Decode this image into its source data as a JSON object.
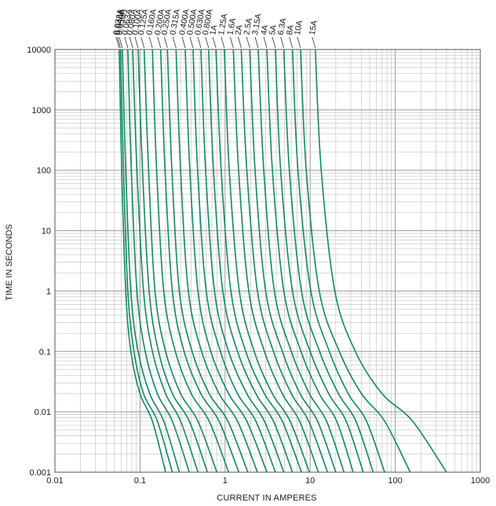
{
  "chart_data": {
    "type": "line",
    "title": "",
    "xlabel": "CURRENT IN AMPERES",
    "ylabel": "TIME IN SECONDS",
    "x_scale": "log",
    "y_scale": "log",
    "xlim": [
      0.01,
      1000
    ],
    "ylim": [
      0.001,
      10000
    ],
    "grid": true,
    "line_color": "#0f8a5f",
    "x_ticks": [
      "0.01",
      "0.1",
      "1",
      "10",
      "100",
      "1000"
    ],
    "y_ticks": [
      "0.001",
      "0.01",
      "0.1",
      "1",
      "10",
      "100",
      "1000",
      "10000"
    ],
    "series": [
      {
        "name": "0.032A",
        "x": [
          0.057,
          0.061,
          0.068,
          0.078,
          0.1,
          0.14,
          0.2
        ],
        "y": [
          10000,
          100,
          1,
          0.1,
          0.02,
          0.007,
          0.001
        ]
      },
      {
        "name": "0.040A",
        "x": [
          0.059,
          0.064,
          0.072,
          0.085,
          0.11,
          0.16,
          0.24
        ],
        "y": [
          10000,
          100,
          1,
          0.1,
          0.02,
          0.007,
          0.001
        ]
      },
      {
        "name": "0.050A",
        "x": [
          0.062,
          0.068,
          0.078,
          0.095,
          0.13,
          0.19,
          0.29
        ],
        "y": [
          10000,
          100,
          1,
          0.1,
          0.02,
          0.007,
          0.001
        ]
      },
      {
        "name": "0.063A",
        "x": [
          0.072,
          0.079,
          0.092,
          0.115,
          0.16,
          0.24,
          0.38
        ],
        "y": [
          10000,
          100,
          1,
          0.1,
          0.02,
          0.007,
          0.001
        ]
      },
      {
        "name": "0.080A",
        "x": [
          0.082,
          0.092,
          0.11,
          0.14,
          0.2,
          0.3,
          0.48
        ],
        "y": [
          10000,
          100,
          1,
          0.1,
          0.02,
          0.007,
          0.001
        ]
      },
      {
        "name": "0.100A",
        "x": [
          0.095,
          0.107,
          0.128,
          0.165,
          0.24,
          0.38,
          0.62
        ],
        "y": [
          10000,
          100,
          1,
          0.1,
          0.02,
          0.007,
          0.001
        ]
      },
      {
        "name": "0.125A",
        "x": [
          0.112,
          0.126,
          0.15,
          0.2,
          0.3,
          0.48,
          0.8
        ],
        "y": [
          10000,
          100,
          1,
          0.1,
          0.02,
          0.007,
          0.001
        ]
      },
      {
        "name": "0.160A",
        "x": [
          0.14,
          0.157,
          0.19,
          0.26,
          0.4,
          0.65,
          1.1
        ],
        "y": [
          10000,
          100,
          1,
          0.1,
          0.02,
          0.007,
          0.001
        ]
      },
      {
        "name": "0.200A",
        "x": [
          0.175,
          0.197,
          0.24,
          0.33,
          0.52,
          0.85,
          1.45
        ],
        "y": [
          10000,
          100,
          1,
          0.1,
          0.02,
          0.007,
          0.001
        ]
      },
      {
        "name": "0.250A",
        "x": [
          0.21,
          0.237,
          0.29,
          0.41,
          0.65,
          1.08,
          1.85
        ],
        "y": [
          10000,
          100,
          1,
          0.1,
          0.02,
          0.007,
          0.001
        ]
      },
      {
        "name": "0.315A",
        "x": [
          0.265,
          0.3,
          0.37,
          0.53,
          0.85,
          1.4,
          2.4
        ],
        "y": [
          10000,
          100,
          1,
          0.1,
          0.02,
          0.007,
          0.001
        ]
      },
      {
        "name": "0.400A",
        "x": [
          0.34,
          0.385,
          0.48,
          0.68,
          1.1,
          1.8,
          3.1
        ],
        "y": [
          10000,
          100,
          1,
          0.1,
          0.02,
          0.007,
          0.001
        ]
      },
      {
        "name": "0.500A",
        "x": [
          0.42,
          0.475,
          0.6,
          0.88,
          1.4,
          2.3,
          3.9
        ],
        "y": [
          10000,
          100,
          1,
          0.1,
          0.02,
          0.007,
          0.001
        ]
      },
      {
        "name": "0.630A",
        "x": [
          0.52,
          0.59,
          0.75,
          1.1,
          1.8,
          2.9,
          4.9
        ],
        "y": [
          10000,
          100,
          1,
          0.1,
          0.02,
          0.007,
          0.001
        ]
      },
      {
        "name": "0.800A",
        "x": [
          0.64,
          0.73,
          0.94,
          1.4,
          2.3,
          3.7,
          6.2
        ],
        "y": [
          10000,
          100,
          1,
          0.1,
          0.02,
          0.007,
          0.001
        ]
      },
      {
        "name": "1A",
        "x": [
          0.78,
          0.9,
          1.17,
          1.75,
          2.9,
          4.7,
          7.9
        ],
        "y": [
          10000,
          100,
          1,
          0.1,
          0.02,
          0.007,
          0.001
        ]
      },
      {
        "name": "1.25A",
        "x": [
          0.98,
          1.12,
          1.47,
          2.2,
          3.6,
          5.8,
          9.8
        ],
        "y": [
          10000,
          100,
          1,
          0.1,
          0.02,
          0.007,
          0.001
        ]
      },
      {
        "name": "1.6A",
        "x": [
          1.25,
          1.44,
          1.9,
          2.9,
          4.7,
          7.5,
          12.5
        ],
        "y": [
          10000,
          100,
          1,
          0.1,
          0.02,
          0.007,
          0.001
        ]
      },
      {
        "name": "2A",
        "x": [
          1.55,
          1.8,
          2.4,
          3.7,
          6.0,
          9.6,
          16
        ],
        "y": [
          10000,
          100,
          1,
          0.1,
          0.02,
          0.007,
          0.001
        ]
      },
      {
        "name": "2.5A",
        "x": [
          1.95,
          2.25,
          3.0,
          4.7,
          7.6,
          12.2,
          20
        ],
        "y": [
          10000,
          100,
          1,
          0.1,
          0.02,
          0.007,
          0.001
        ]
      },
      {
        "name": "3.15A",
        "x": [
          2.45,
          2.85,
          3.8,
          6.0,
          9.8,
          15.6,
          25
        ],
        "y": [
          10000,
          100,
          1,
          0.1,
          0.02,
          0.007,
          0.001
        ]
      },
      {
        "name": "4A",
        "x": [
          3.1,
          3.6,
          4.9,
          7.8,
          12.8,
          20.5,
          32
        ],
        "y": [
          10000,
          100,
          1,
          0.1,
          0.02,
          0.007,
          0.001
        ]
      },
      {
        "name": "5A",
        "x": [
          3.9,
          4.5,
          6.2,
          10,
          16.5,
          26.5,
          42
        ],
        "y": [
          10000,
          100,
          1,
          0.1,
          0.02,
          0.007,
          0.001
        ]
      },
      {
        "name": "6.3A",
        "x": [
          4.9,
          5.7,
          7.9,
          12.9,
          21.5,
          34.5,
          55
        ],
        "y": [
          10000,
          100,
          1,
          0.1,
          0.02,
          0.007,
          0.001
        ]
      },
      {
        "name": "8A",
        "x": [
          6.2,
          7.2,
          10.2,
          16.8,
          28,
          46,
          75
        ],
        "y": [
          10000,
          100,
          1,
          0.1,
          0.02,
          0.007,
          0.001
        ]
      },
      {
        "name": "10A",
        "x": [
          7.7,
          9.0,
          12.8,
          22,
          40,
          75,
          150
        ],
        "y": [
          10000,
          100,
          1,
          0.1,
          0.02,
          0.007,
          0.001
        ]
      },
      {
        "name": "15A",
        "x": [
          11.5,
          13.5,
          19.5,
          34,
          70,
          160,
          400
        ],
        "y": [
          10000,
          100,
          1,
          0.1,
          0.02,
          0.007,
          0.001
        ]
      }
    ]
  }
}
